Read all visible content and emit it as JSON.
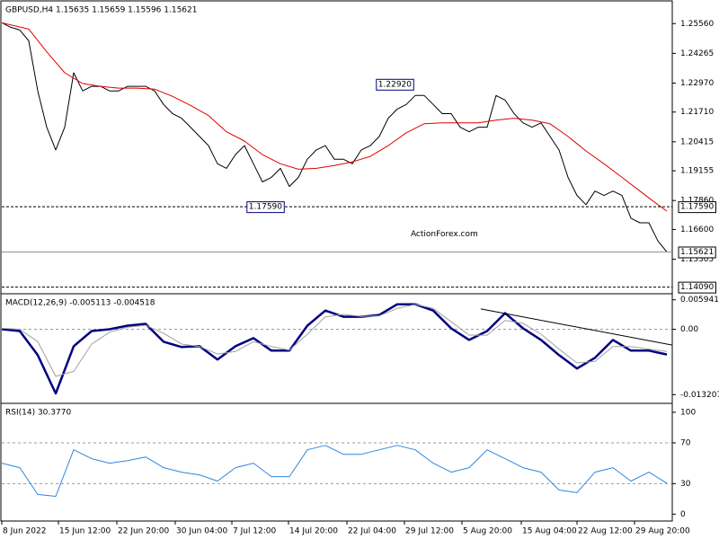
{
  "chart_data": [
    {
      "type": "line",
      "title": "GBPUSD,H4  1.15635 1.15659 1.15596 1.15621",
      "watermark": "ActionForex.com",
      "xlim": [
        0,
        74.6
      ],
      "ylim": [
        1.1388,
        1.2647
      ],
      "yticks": [
        {
          "value": 1.2556,
          "label": "1.25560"
        },
        {
          "value": 1.24265,
          "label": "1.24265"
        },
        {
          "value": 1.2297,
          "label": "1.22970"
        },
        {
          "value": 1.2171,
          "label": "1.21710"
        },
        {
          "value": 1.20415,
          "label": "1.20415"
        },
        {
          "value": 1.19155,
          "label": "1.19155"
        },
        {
          "value": 1.1786,
          "label": "1.17860"
        },
        {
          "value": 1.166,
          "label": "1.16600"
        },
        {
          "value": 1.15305,
          "label": "1.15305"
        }
      ],
      "series": [
        {
          "color": "#000000",
          "values": [
            1.256,
            1.254,
            1.2528,
            1.2481,
            1.2263,
            1.2105,
            1.2006,
            1.2105,
            1.2342,
            1.2263,
            1.2283,
            1.2283,
            1.2263,
            1.2263,
            1.2283,
            1.2283,
            1.2283,
            1.2263,
            1.2204,
            1.2164,
            1.2144,
            1.2105,
            1.2065,
            1.2025,
            1.1946,
            1.1926,
            1.1986,
            1.2025,
            1.1946,
            1.1867,
            1.1887,
            1.1926,
            1.1847,
            1.1887,
            1.1966,
            1.2006,
            1.2025,
            1.1966,
            1.1966,
            1.1946,
            1.2006,
            1.2025,
            1.2065,
            1.2144,
            1.2184,
            1.2204,
            1.2243,
            1.2243,
            1.2204,
            1.2164,
            1.2164,
            1.2105,
            1.2085,
            1.2105,
            1.2105,
            1.2243,
            1.2223,
            1.2164,
            1.2124,
            1.2105,
            1.2124,
            1.2065,
            1.2006,
            1.1887,
            1.1808,
            1.1768,
            1.1827,
            1.1808,
            1.1827,
            1.1808,
            1.1709,
            1.1689,
            1.1689,
            1.161,
            1.1562
          ]
        },
        {
          "color": "#e00000",
          "x": [
            0,
            3,
            5,
            7,
            9,
            11,
            13,
            15,
            17,
            19,
            21,
            23,
            25,
            27,
            29,
            31,
            33,
            35,
            37,
            39,
            41,
            43,
            45,
            47,
            49,
            51,
            53,
            55,
            57,
            59,
            61,
            63,
            65,
            67,
            69,
            71,
            73,
            74
          ],
          "values": [
            1.256,
            1.2532,
            1.2433,
            1.2342,
            1.2295,
            1.2283,
            1.2275,
            1.2275,
            1.2271,
            1.2239,
            1.22,
            1.2156,
            1.2085,
            1.2045,
            1.1986,
            1.1946,
            1.1922,
            1.1926,
            1.1938,
            1.1954,
            1.1978,
            1.2025,
            1.2081,
            1.212,
            1.2124,
            1.2124,
            1.2124,
            1.2136,
            1.2144,
            1.2136,
            1.212,
            1.2065,
            1.2002,
            1.1946,
            1.1887,
            1.1827,
            1.1768,
            1.174
          ]
        }
      ],
      "hlines": [
        {
          "value": 1.1759,
          "label": "1.17590"
        },
        {
          "value": 1.1409,
          "label": "1.14090"
        }
      ],
      "last_price": {
        "value": 1.15621,
        "label": "1.15621"
      },
      "annotations": [
        {
          "x": 46,
          "value": 1.2292,
          "label": "1.22920"
        },
        {
          "x": 31.6,
          "value": 1.1759,
          "label": "1.17590"
        }
      ]
    },
    {
      "type": "line",
      "title": "MACD(12,26,9) -0.005113 -0.004518",
      "xlim": [
        0,
        74.6
      ],
      "ylim": [
        -0.0146,
        0.0068
      ],
      "yticks": [
        0.005941,
        {
          "value": 0,
          "label": "0.00"
        },
        -0.013207
      ],
      "levels": [
        0
      ],
      "series": [
        {
          "color": "#000080",
          "width": 2.5,
          "x": [
            0,
            2,
            4,
            6,
            8,
            10,
            12,
            14,
            16,
            18,
            20,
            22,
            24,
            26,
            28,
            30,
            32,
            34,
            36,
            38,
            40,
            42,
            44,
            46,
            48,
            50,
            52,
            54,
            56,
            58,
            60,
            62,
            64,
            66,
            68,
            70,
            72,
            74
          ],
          "values": [
            0,
            -0.00036,
            -0.00522,
            -0.01296,
            -0.00342,
            -0.00036,
            0,
            0.00072,
            0.00108,
            -0.00252,
            -0.0036,
            -0.00342,
            -0.00612,
            -0.00342,
            -0.0018,
            -0.00432,
            -0.00432,
            0.00072,
            0.00378,
            0.00252,
            0.00252,
            0.00288,
            0.00504,
            0.00504,
            0.00378,
            0.00018,
            -0.00216,
            -0.00036,
            0.00324,
            0.00018,
            -0.00216,
            -0.00522,
            -0.00792,
            -0.00576,
            -0.00216,
            -0.00432,
            -0.00432,
            -0.0051
          ]
        },
        {
          "color": "#a0a0a0",
          "width": 1,
          "x": [
            0,
            2,
            4,
            6,
            8,
            10,
            12,
            14,
            16,
            18,
            20,
            22,
            24,
            26,
            28,
            30,
            32,
            34,
            36,
            38,
            40,
            42,
            44,
            46,
            48,
            50,
            52,
            54,
            56,
            58,
            60,
            62,
            64,
            66,
            68,
            70,
            72,
            74
          ],
          "values": [
            0.0002,
            0,
            -0.0025,
            -0.0095,
            -0.0085,
            -0.003,
            -0.0006,
            0.0004,
            0.0008,
            -0.0008,
            -0.003,
            -0.0035,
            -0.005,
            -0.0045,
            -0.0025,
            -0.0035,
            -0.0042,
            -0.001,
            0.0025,
            0.003,
            0.0026,
            0.0027,
            0.0042,
            0.005,
            0.0042,
            0.0015,
            -0.0012,
            -0.0012,
            0.0018,
            0.0012,
            -0.001,
            -0.004,
            -0.0068,
            -0.0065,
            -0.0035,
            -0.0035,
            -0.004,
            -0.0045
          ]
        }
      ],
      "trendline": {
        "x": [
          53.3,
          74.6
        ],
        "y": [
          0.0041,
          -0.0032
        ],
        "color": "#000000"
      }
    },
    {
      "type": "line",
      "title": "RSI(14) 30.3770",
      "xlim": [
        0,
        74.6
      ],
      "ylim": [
        -5,
        107
      ],
      "yticks": [
        100,
        70,
        30,
        0
      ],
      "levels": [
        70,
        30
      ],
      "xticks": [
        {
          "value": 0,
          "label": "8 Jun 2022"
        },
        {
          "value": 6.3,
          "label": "15 Jun 12:00"
        },
        {
          "value": 12.8,
          "label": "22 Jun 20:00"
        },
        {
          "value": 19.3,
          "label": "30 Jun 04:00"
        },
        {
          "value": 25.6,
          "label": "7 Jul 12:00"
        },
        {
          "value": 31.9,
          "label": "14 Jul 20:00"
        },
        {
          "value": 38.4,
          "label": "22 Jul 04:00"
        },
        {
          "value": 44.8,
          "label": "29 Jul 12:00"
        },
        {
          "value": 51.2,
          "label": "5 Aug 20:00"
        },
        {
          "value": 57.8,
          "label": "15 Aug 04:00"
        },
        {
          "value": 64,
          "label": "22 Aug 12:00"
        },
        {
          "value": 70.4,
          "label": "29 Aug 20:00"
        }
      ],
      "series": [
        {
          "color": "#2e86de",
          "width": 1,
          "x": [
            0,
            2,
            4,
            6,
            8,
            10,
            12,
            14,
            16,
            18,
            20,
            22,
            24,
            26,
            28,
            30,
            32,
            34,
            36,
            38,
            40,
            42,
            44,
            46,
            48,
            50,
            52,
            54,
            56,
            58,
            60,
            62,
            64,
            66,
            68,
            70,
            72,
            74
          ],
          "values": [
            50.0,
            45.6,
            19.3,
            17.5,
            63.2,
            54.4,
            50.0,
            52.6,
            56.1,
            45.6,
            41.2,
            38.6,
            32.5,
            45.6,
            50.0,
            36.8,
            36.8,
            63.2,
            67.5,
            58.8,
            58.8,
            63.2,
            67.5,
            63.2,
            50.0,
            41.2,
            45.6,
            63.2,
            54.4,
            45.6,
            41.2,
            23.7,
            21.1,
            41.2,
            45.6,
            32.5,
            41.2,
            30.4
          ]
        }
      ]
    }
  ]
}
